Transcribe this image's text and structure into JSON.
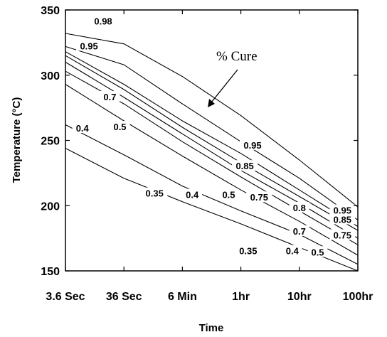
{
  "chart_data": {
    "type": "line",
    "title": "",
    "xlabel": "Time",
    "ylabel": "Temperature (°C)",
    "x_scale": "log",
    "xlim_seconds": [
      3.6,
      360000
    ],
    "ylim": [
      150,
      350
    ],
    "x_tick_seconds": [
      3.6,
      36,
      360,
      3600,
      36000,
      360000
    ],
    "x_tick_labels": [
      "3.6 Sec",
      "36 Sec",
      "6 Min",
      "1hr",
      "10hr",
      "100hr"
    ],
    "y_ticks": [
      150,
      200,
      250,
      300,
      350
    ],
    "y_tick_labels": [
      "150",
      "200",
      "250",
      "300",
      "350"
    ],
    "grid": false,
    "annotation": "% Cure",
    "series": [
      {
        "name": "0.35",
        "points": [
          [
            3.6,
            244
          ],
          [
            36,
            221
          ],
          [
            360,
            203
          ],
          [
            3600,
            186
          ],
          [
            36000,
            168
          ],
          [
            360000,
            150
          ]
        ]
      },
      {
        "name": "0.4",
        "points": [
          [
            3.6,
            262
          ],
          [
            36,
            239
          ],
          [
            360,
            215
          ],
          [
            3600,
            196
          ],
          [
            36000,
            178
          ],
          [
            360000,
            155
          ]
        ]
      },
      {
        "name": "0.5",
        "points": [
          [
            3.6,
            293
          ],
          [
            36,
            265
          ],
          [
            360,
            238
          ],
          [
            3600,
            212
          ],
          [
            36000,
            188
          ],
          [
            360000,
            162
          ]
        ]
      },
      {
        "name": "0.7",
        "points": [
          [
            3.6,
            303
          ],
          [
            36,
            278
          ],
          [
            360,
            249
          ],
          [
            3600,
            222
          ],
          [
            36000,
            196
          ],
          [
            360000,
            170
          ]
        ]
      },
      {
        "name": "0.75",
        "points": [
          [
            3.6,
            310
          ],
          [
            36,
            283
          ],
          [
            360,
            255
          ],
          [
            3600,
            227
          ],
          [
            36000,
            202
          ],
          [
            360000,
            175
          ]
        ]
      },
      {
        "name": "0.8",
        "points": [
          [
            3.6,
            315
          ],
          [
            36,
            289
          ],
          [
            360,
            260
          ],
          [
            3600,
            233
          ],
          [
            36000,
            207
          ],
          [
            360000,
            181
          ]
        ]
      },
      {
        "name": "0.85",
        "points": [
          [
            3.6,
            318
          ],
          [
            36,
            293
          ],
          [
            360,
            265
          ],
          [
            3600,
            240
          ],
          [
            36000,
            212
          ],
          [
            360000,
            184
          ]
        ]
      },
      {
        "name": "0.95",
        "points": [
          [
            3.6,
            322
          ],
          [
            36,
            308
          ],
          [
            360,
            278
          ],
          [
            3600,
            249
          ],
          [
            36000,
            221
          ],
          [
            360000,
            189
          ]
        ]
      },
      {
        "name": "0.98",
        "points": [
          [
            3.6,
            332
          ],
          [
            36,
            324
          ],
          [
            360,
            299
          ],
          [
            3600,
            269
          ],
          [
            36000,
            235
          ],
          [
            360000,
            199
          ]
        ]
      }
    ],
    "contour_labels": [
      {
        "text": "0.98",
        "x": 15.9,
        "y": 341
      },
      {
        "text": "0.95",
        "x": 9.1,
        "y": 322
      },
      {
        "text": "0.7",
        "x": 20.7,
        "y": 283
      },
      {
        "text": "0.5",
        "x": 30.7,
        "y": 260
      },
      {
        "text": "0.4",
        "x": 7.0,
        "y": 259
      },
      {
        "text": "0.35",
        "x": 120,
        "y": 209
      },
      {
        "text": "0.4",
        "x": 530,
        "y": 208
      },
      {
        "text": "0.5",
        "x": 2230,
        "y": 208
      },
      {
        "text": "0.75",
        "x": 7400,
        "y": 206
      },
      {
        "text": "0.8",
        "x": 36000,
        "y": 198
      },
      {
        "text": "0.95",
        "x": 5700,
        "y": 246
      },
      {
        "text": "0.85",
        "x": 4200,
        "y": 230
      },
      {
        "text": "0.95",
        "x": 196000,
        "y": 196
      },
      {
        "text": "0.85",
        "x": 196000,
        "y": 189
      },
      {
        "text": "0.75",
        "x": 196000,
        "y": 177
      },
      {
        "text": "0.7",
        "x": 36000,
        "y": 180
      },
      {
        "text": "0.5",
        "x": 74000,
        "y": 164
      },
      {
        "text": "0.4",
        "x": 27200,
        "y": 165
      },
      {
        "text": "0.35",
        "x": 4800,
        "y": 165
      }
    ]
  }
}
